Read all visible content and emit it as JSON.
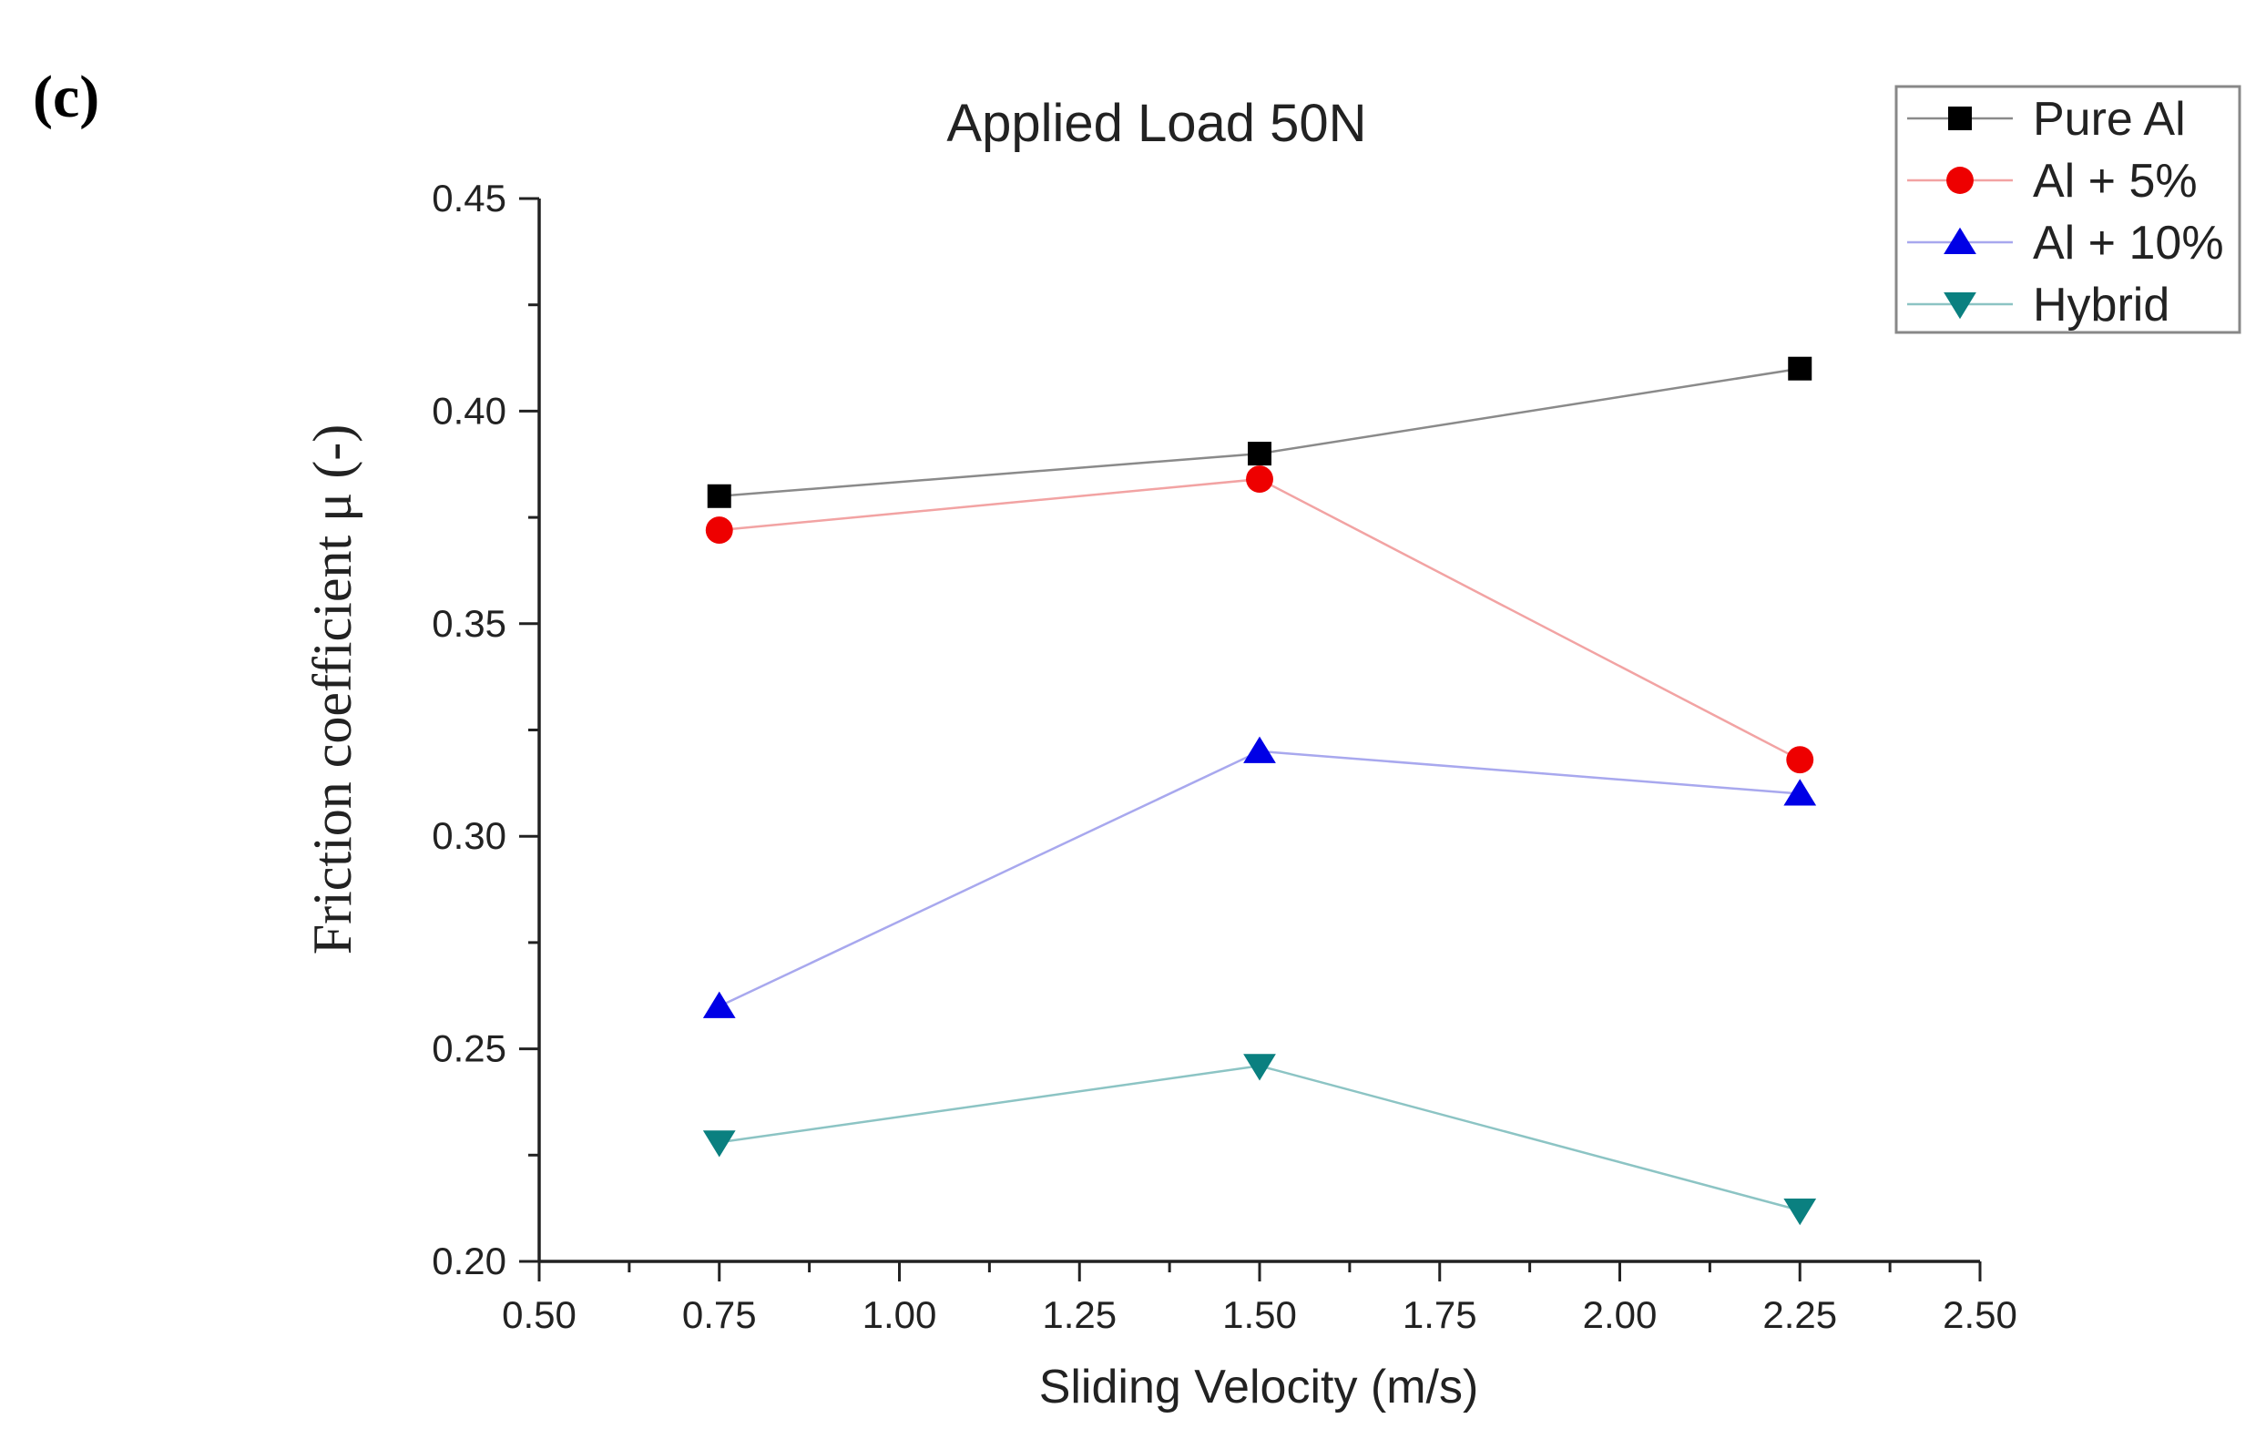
{
  "panel_label": "(c)",
  "chart_data": {
    "type": "line",
    "title": "Applied Load 50N",
    "xlabel": "Sliding Velocity (m/s)",
    "ylabel": "Friction coefficient μ (-)",
    "xlim": [
      0.5,
      2.5
    ],
    "ylim": [
      0.2,
      0.45
    ],
    "x_ticks": [
      0.5,
      0.75,
      1.0,
      1.25,
      1.5,
      1.75,
      2.0,
      2.25,
      2.5
    ],
    "x_tick_labels": [
      "0.50",
      "0.75",
      "1.00",
      "1.25",
      "1.50",
      "1.75",
      "2.00",
      "2.25",
      "2.50"
    ],
    "y_ticks": [
      0.2,
      0.25,
      0.3,
      0.35,
      0.4,
      0.45
    ],
    "y_tick_labels": [
      "0.20",
      "0.25",
      "0.30",
      "0.35",
      "0.40",
      "0.45"
    ],
    "x": [
      0.75,
      1.5,
      2.25
    ],
    "series": [
      {
        "name": "Pure Al",
        "values": [
          0.38,
          0.39,
          0.41
        ],
        "marker": "square",
        "marker_color": "#000000",
        "line_color": "#8a8a8a"
      },
      {
        "name": "Al + 5%",
        "values": [
          0.372,
          0.384,
          0.318
        ],
        "marker": "circle",
        "marker_color": "#ee0000",
        "line_color": "#f2a3a3"
      },
      {
        "name": "Al + 10%",
        "values": [
          0.26,
          0.32,
          0.31
        ],
        "marker": "triangle-up",
        "marker_color": "#0000e6",
        "line_color": "#a8a8ee"
      },
      {
        "name": "Hybrid",
        "values": [
          0.228,
          0.246,
          0.212
        ],
        "marker": "triangle-down",
        "marker_color": "#0a8080",
        "line_color": "#8cc4c4"
      }
    ],
    "legend_position": "top-right"
  }
}
